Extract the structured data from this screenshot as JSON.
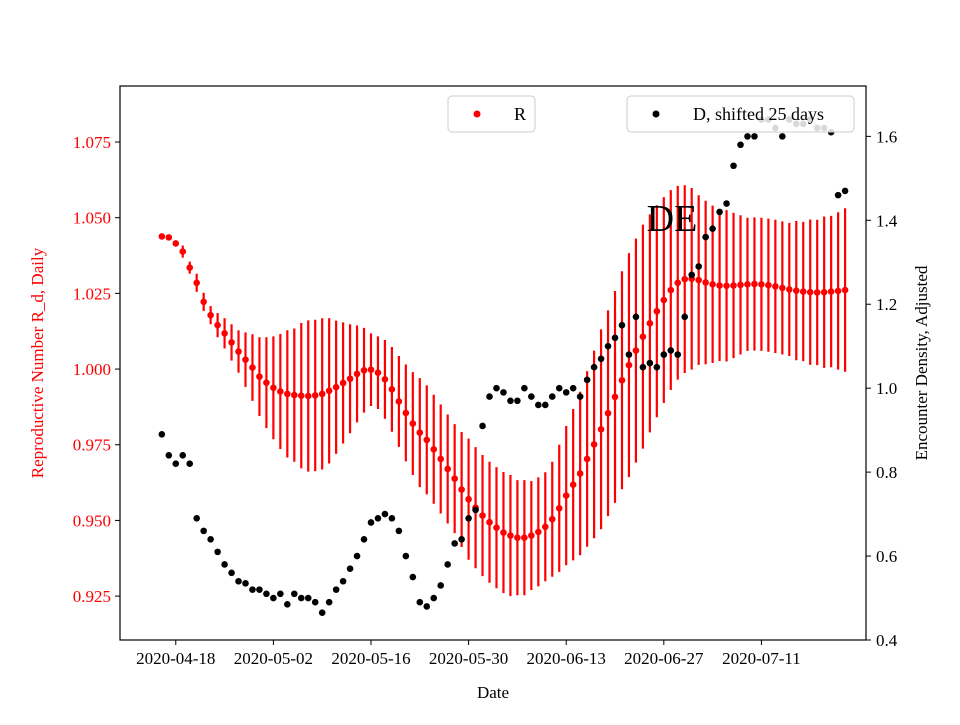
{
  "chart_data": {
    "type": "scatter",
    "panel_label": "DE",
    "xlabel": "Date",
    "ylabel_left": "Reproductive Number R_d, Daily",
    "ylabel_right": "Encounter Density, Adjusted",
    "x_ticks": [
      "2020-04-18",
      "2020-05-02",
      "2020-05-16",
      "2020-05-30",
      "2020-06-13",
      "2020-06-27",
      "2020-07-11"
    ],
    "y_left_ticks": [
      "0.925",
      "0.950",
      "0.975",
      "1.000",
      "1.025",
      "1.050",
      "1.075"
    ],
    "y_right_ticks": [
      "0.4",
      "0.6",
      "0.8",
      "1.0",
      "1.2",
      "1.4",
      "1.6"
    ],
    "y_left_lim": [
      0.9105,
      1.0935
    ],
    "y_right_lim": [
      0.4,
      1.72
    ],
    "x_lim": [
      "2020-04-10",
      "2020-07-26"
    ],
    "legend": [
      {
        "label": "R",
        "position": "top-center",
        "color": "#ff0000"
      },
      {
        "label": "D, shifted 25 days",
        "position": "top-right",
        "color": "#000000"
      }
    ],
    "colors": {
      "R": "#ff0000",
      "D": "#000000",
      "left_axis_text": "#ff0000",
      "right_axis_text": "#000000"
    },
    "series": [
      {
        "name": "R",
        "axis": "left",
        "dates": [
          "2020-04-16",
          "2020-04-17",
          "2020-04-18",
          "2020-04-19",
          "2020-04-20",
          "2020-04-21",
          "2020-04-22",
          "2020-04-23",
          "2020-04-24",
          "2020-04-25",
          "2020-04-26",
          "2020-04-27",
          "2020-04-28",
          "2020-04-29",
          "2020-04-30",
          "2020-05-01",
          "2020-05-02",
          "2020-05-03",
          "2020-05-04",
          "2020-05-05",
          "2020-05-06",
          "2020-05-07",
          "2020-05-08",
          "2020-05-09",
          "2020-05-10",
          "2020-05-11",
          "2020-05-12",
          "2020-05-13",
          "2020-05-14",
          "2020-05-15",
          "2020-05-16",
          "2020-05-17",
          "2020-05-18",
          "2020-05-19",
          "2020-05-20",
          "2020-05-21",
          "2020-05-22",
          "2020-05-23",
          "2020-05-24",
          "2020-05-25",
          "2020-05-26",
          "2020-05-27",
          "2020-05-28",
          "2020-05-29",
          "2020-05-30",
          "2020-05-31",
          "2020-06-01",
          "2020-06-02",
          "2020-06-03",
          "2020-06-04",
          "2020-06-05",
          "2020-06-06",
          "2020-06-07",
          "2020-06-08",
          "2020-06-09",
          "2020-06-10",
          "2020-06-11",
          "2020-06-12",
          "2020-06-13",
          "2020-06-14",
          "2020-06-15",
          "2020-06-16",
          "2020-06-17",
          "2020-06-18",
          "2020-06-19",
          "2020-06-20",
          "2020-06-21",
          "2020-06-22",
          "2020-06-23",
          "2020-06-24",
          "2020-06-25",
          "2020-06-26",
          "2020-06-27",
          "2020-06-28",
          "2020-06-29",
          "2020-06-30",
          "2020-07-01",
          "2020-07-02",
          "2020-07-03",
          "2020-07-04",
          "2020-07-05",
          "2020-07-06",
          "2020-07-07",
          "2020-07-08",
          "2020-07-09",
          "2020-07-10",
          "2020-07-11",
          "2020-07-12",
          "2020-07-13",
          "2020-07-14",
          "2020-07-15",
          "2020-07-16",
          "2020-07-17",
          "2020-07-18",
          "2020-07-19",
          "2020-07-20",
          "2020-07-21",
          "2020-07-22",
          "2020-07-23"
        ],
        "values": [
          1.0438,
          1.0435,
          1.0415,
          1.0388,
          1.0335,
          1.0285,
          1.0222,
          1.0178,
          1.0145,
          1.0118,
          1.0088,
          1.0058,
          1.0031,
          1.0005,
          0.9975,
          0.9955,
          0.9938,
          0.9926,
          0.9918,
          0.9914,
          0.9912,
          0.9911,
          0.9913,
          0.9918,
          0.9928,
          0.994,
          0.9954,
          0.9968,
          0.9984,
          0.9996,
          0.9998,
          0.9988,
          0.9966,
          0.9933,
          0.9893,
          0.9855,
          0.982,
          0.979,
          0.9766,
          0.9735,
          0.9703,
          0.967,
          0.9638,
          0.9602,
          0.957,
          0.9542,
          0.9516,
          0.9494,
          0.9476,
          0.946,
          0.945,
          0.9443,
          0.9443,
          0.945,
          0.9462,
          0.9479,
          0.9504,
          0.954,
          0.9582,
          0.9618,
          0.9655,
          0.9703,
          0.9751,
          0.9801,
          0.9854,
          0.9908,
          0.9963,
          1.0013,
          1.0061,
          1.0107,
          1.0151,
          1.0191,
          1.0228,
          1.0261,
          1.0285,
          1.0297,
          1.0298,
          1.0294,
          1.0286,
          1.028,
          1.0276,
          1.0275,
          1.0276,
          1.0278,
          1.028,
          1.0281,
          1.028,
          1.0277,
          1.0273,
          1.0268,
          1.0263,
          1.0259,
          1.0256,
          1.0254,
          1.0253,
          1.0254,
          1.0256,
          1.0258,
          1.0261
        ],
        "err": [
          0.0,
          0.0,
          0.001,
          0.002,
          0.002,
          0.003,
          0.003,
          0.003,
          0.004,
          0.005,
          0.006,
          0.007,
          0.009,
          0.011,
          0.013,
          0.015,
          0.017,
          0.019,
          0.021,
          0.022,
          0.024,
          0.025,
          0.025,
          0.025,
          0.024,
          0.022,
          0.02,
          0.018,
          0.016,
          0.014,
          0.012,
          0.012,
          0.013,
          0.014,
          0.015,
          0.016,
          0.017,
          0.018,
          0.018,
          0.018,
          0.018,
          0.018,
          0.018,
          0.019,
          0.02,
          0.02,
          0.02,
          0.02,
          0.02,
          0.02,
          0.02,
          0.019,
          0.019,
          0.018,
          0.018,
          0.018,
          0.019,
          0.021,
          0.023,
          0.025,
          0.027,
          0.029,
          0.031,
          0.033,
          0.034,
          0.035,
          0.036,
          0.037,
          0.037,
          0.037,
          0.036,
          0.035,
          0.034,
          0.033,
          0.032,
          0.031,
          0.03,
          0.028,
          0.027,
          0.026,
          0.025,
          0.025,
          0.024,
          0.023,
          0.022,
          0.022,
          0.022,
          0.022,
          0.022,
          0.022,
          0.022,
          0.023,
          0.023,
          0.024,
          0.024,
          0.025,
          0.025,
          0.026,
          0.027
        ]
      },
      {
        "name": "D, shifted 25 days",
        "axis": "right",
        "dates": [
          "2020-04-16",
          "2020-04-17",
          "2020-04-18",
          "2020-04-19",
          "2020-04-20",
          "2020-04-21",
          "2020-04-22",
          "2020-04-23",
          "2020-04-24",
          "2020-04-25",
          "2020-04-26",
          "2020-04-27",
          "2020-04-28",
          "2020-04-29",
          "2020-04-30",
          "2020-05-01",
          "2020-05-02",
          "2020-05-03",
          "2020-05-04",
          "2020-05-05",
          "2020-05-06",
          "2020-05-07",
          "2020-05-08",
          "2020-05-09",
          "2020-05-10",
          "2020-05-11",
          "2020-05-12",
          "2020-05-13",
          "2020-05-14",
          "2020-05-15",
          "2020-05-16",
          "2020-05-17",
          "2020-05-18",
          "2020-05-19",
          "2020-05-20",
          "2020-05-21",
          "2020-05-22",
          "2020-05-23",
          "2020-05-24",
          "2020-05-25",
          "2020-05-26",
          "2020-05-27",
          "2020-05-28",
          "2020-05-29",
          "2020-05-30",
          "2020-05-31",
          "2020-06-01",
          "2020-06-02",
          "2020-06-03",
          "2020-06-04",
          "2020-06-05",
          "2020-06-06",
          "2020-06-07",
          "2020-06-08",
          "2020-06-09",
          "2020-06-10",
          "2020-06-11",
          "2020-06-12",
          "2020-06-13",
          "2020-06-14",
          "2020-06-15",
          "2020-06-16",
          "2020-06-17",
          "2020-06-18",
          "2020-06-19",
          "2020-06-20",
          "2020-06-21",
          "2020-06-22",
          "2020-06-23",
          "2020-06-24",
          "2020-06-25",
          "2020-06-26",
          "2020-06-27",
          "2020-06-28",
          "2020-06-29",
          "2020-06-30",
          "2020-07-01",
          "2020-07-02",
          "2020-07-03",
          "2020-07-04",
          "2020-07-05",
          "2020-07-06",
          "2020-07-07",
          "2020-07-08",
          "2020-07-09",
          "2020-07-10",
          "2020-07-11",
          "2020-07-12",
          "2020-07-13",
          "2020-07-14",
          "2020-07-15",
          "2020-07-16",
          "2020-07-17",
          "2020-07-18",
          "2020-07-19",
          "2020-07-20",
          "2020-07-21",
          "2020-07-22",
          "2020-07-23"
        ],
        "values": [
          0.89,
          0.84,
          0.82,
          0.84,
          0.82,
          0.69,
          0.66,
          0.64,
          0.61,
          0.58,
          0.56,
          0.54,
          0.535,
          0.52,
          0.52,
          0.51,
          0.5,
          0.51,
          0.485,
          0.51,
          0.5,
          0.5,
          0.49,
          0.465,
          0.49,
          0.52,
          0.54,
          0.57,
          0.6,
          0.64,
          0.68,
          0.69,
          0.7,
          0.69,
          0.66,
          0.6,
          0.55,
          0.49,
          0.48,
          0.5,
          0.53,
          0.58,
          0.63,
          0.64,
          0.69,
          0.71,
          0.91,
          0.98,
          1.0,
          0.99,
          0.97,
          0.97,
          1.0,
          0.98,
          0.96,
          0.96,
          0.98,
          1.0,
          0.99,
          1.0,
          0.98,
          1.02,
          1.05,
          1.07,
          1.1,
          1.12,
          1.15,
          1.08,
          1.17,
          1.05,
          1.06,
          1.05,
          1.08,
          1.09,
          1.08,
          1.17,
          1.27,
          1.29,
          1.36,
          1.38,
          1.42,
          1.44,
          1.53,
          1.58,
          1.6,
          1.6,
          1.64,
          1.64,
          1.62,
          1.6,
          1.64,
          1.63,
          1.63,
          1.64,
          1.62,
          1.62,
          1.61,
          1.46,
          1.47
        ]
      }
    ]
  }
}
